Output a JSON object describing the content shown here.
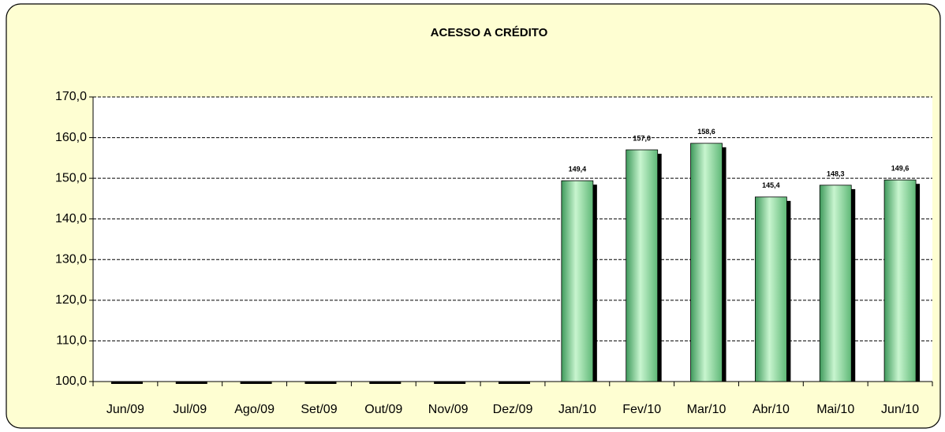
{
  "chart_data": {
    "type": "bar",
    "title": "ACESSO A CRÉDITO",
    "categories": [
      "Jun/09",
      "Jul/09",
      "Ago/09",
      "Set/09",
      "Out/09",
      "Nov/09",
      "Dez/09",
      "Jan/10",
      "Fev/10",
      "Mar/10",
      "Abr/10",
      "Mai/10",
      "Jun/10"
    ],
    "values": [
      null,
      null,
      null,
      null,
      null,
      null,
      null,
      149.4,
      157.0,
      158.6,
      145.4,
      148.3,
      149.6
    ],
    "value_labels": [
      null,
      null,
      null,
      null,
      null,
      null,
      null,
      "149,4",
      "157,0",
      "158,6",
      "145,4",
      "148,3",
      "149,6"
    ],
    "color": "#7fd59a",
    "ylim": [
      100,
      170
    ],
    "yticks": [
      {
        "value": 100,
        "label": "100,0"
      },
      {
        "value": 110,
        "label": "110,0"
      },
      {
        "value": 120,
        "label": "120,0"
      },
      {
        "value": 130,
        "label": "130,0"
      },
      {
        "value": 140,
        "label": "140,0"
      },
      {
        "value": 150,
        "label": "150,0"
      },
      {
        "value": 160,
        "label": "160,0"
      },
      {
        "value": 170,
        "label": "170,0"
      }
    ],
    "grid": true
  }
}
